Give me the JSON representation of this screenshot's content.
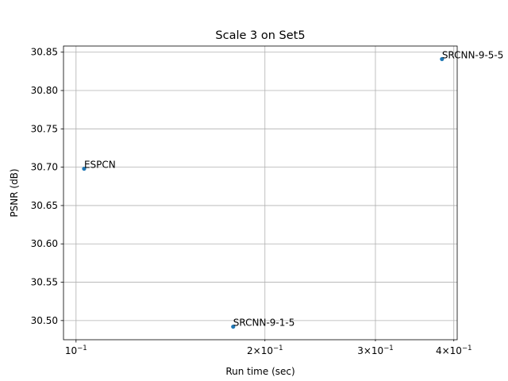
{
  "chart_data": {
    "type": "scatter",
    "title": "Scale 3 on Set5",
    "xlabel": "Run time (sec)",
    "ylabel": "PSNR (dB)",
    "xscale": "log",
    "xlim": [
      0.0955,
      0.405
    ],
    "ylim": [
      30.475,
      30.858
    ],
    "grid": true,
    "marker_color": "#1f77b4",
    "x_ticks": [
      {
        "value": 0.1,
        "mantissa": "10",
        "exp": "−1"
      },
      {
        "value": 0.2,
        "mantissa": "2×10",
        "exp": "−1"
      },
      {
        "value": 0.3,
        "mantissa": "3×10",
        "exp": "−1"
      },
      {
        "value": 0.4,
        "mantissa": "4×10",
        "exp": "−1"
      }
    ],
    "y_ticks": [
      30.5,
      30.55,
      30.6,
      30.65,
      30.7,
      30.75,
      30.8,
      30.85
    ],
    "y_tick_labels": [
      "30.50",
      "30.55",
      "30.60",
      "30.65",
      "30.70",
      "30.75",
      "30.80",
      "30.85"
    ],
    "points": [
      {
        "label": "ESPCN",
        "x": 0.103,
        "y": 30.698
      },
      {
        "label": "SRCNN-9-1-5",
        "x": 0.178,
        "y": 30.492
      },
      {
        "label": "SRCNN-9-5-5",
        "x": 0.383,
        "y": 30.841
      }
    ]
  }
}
